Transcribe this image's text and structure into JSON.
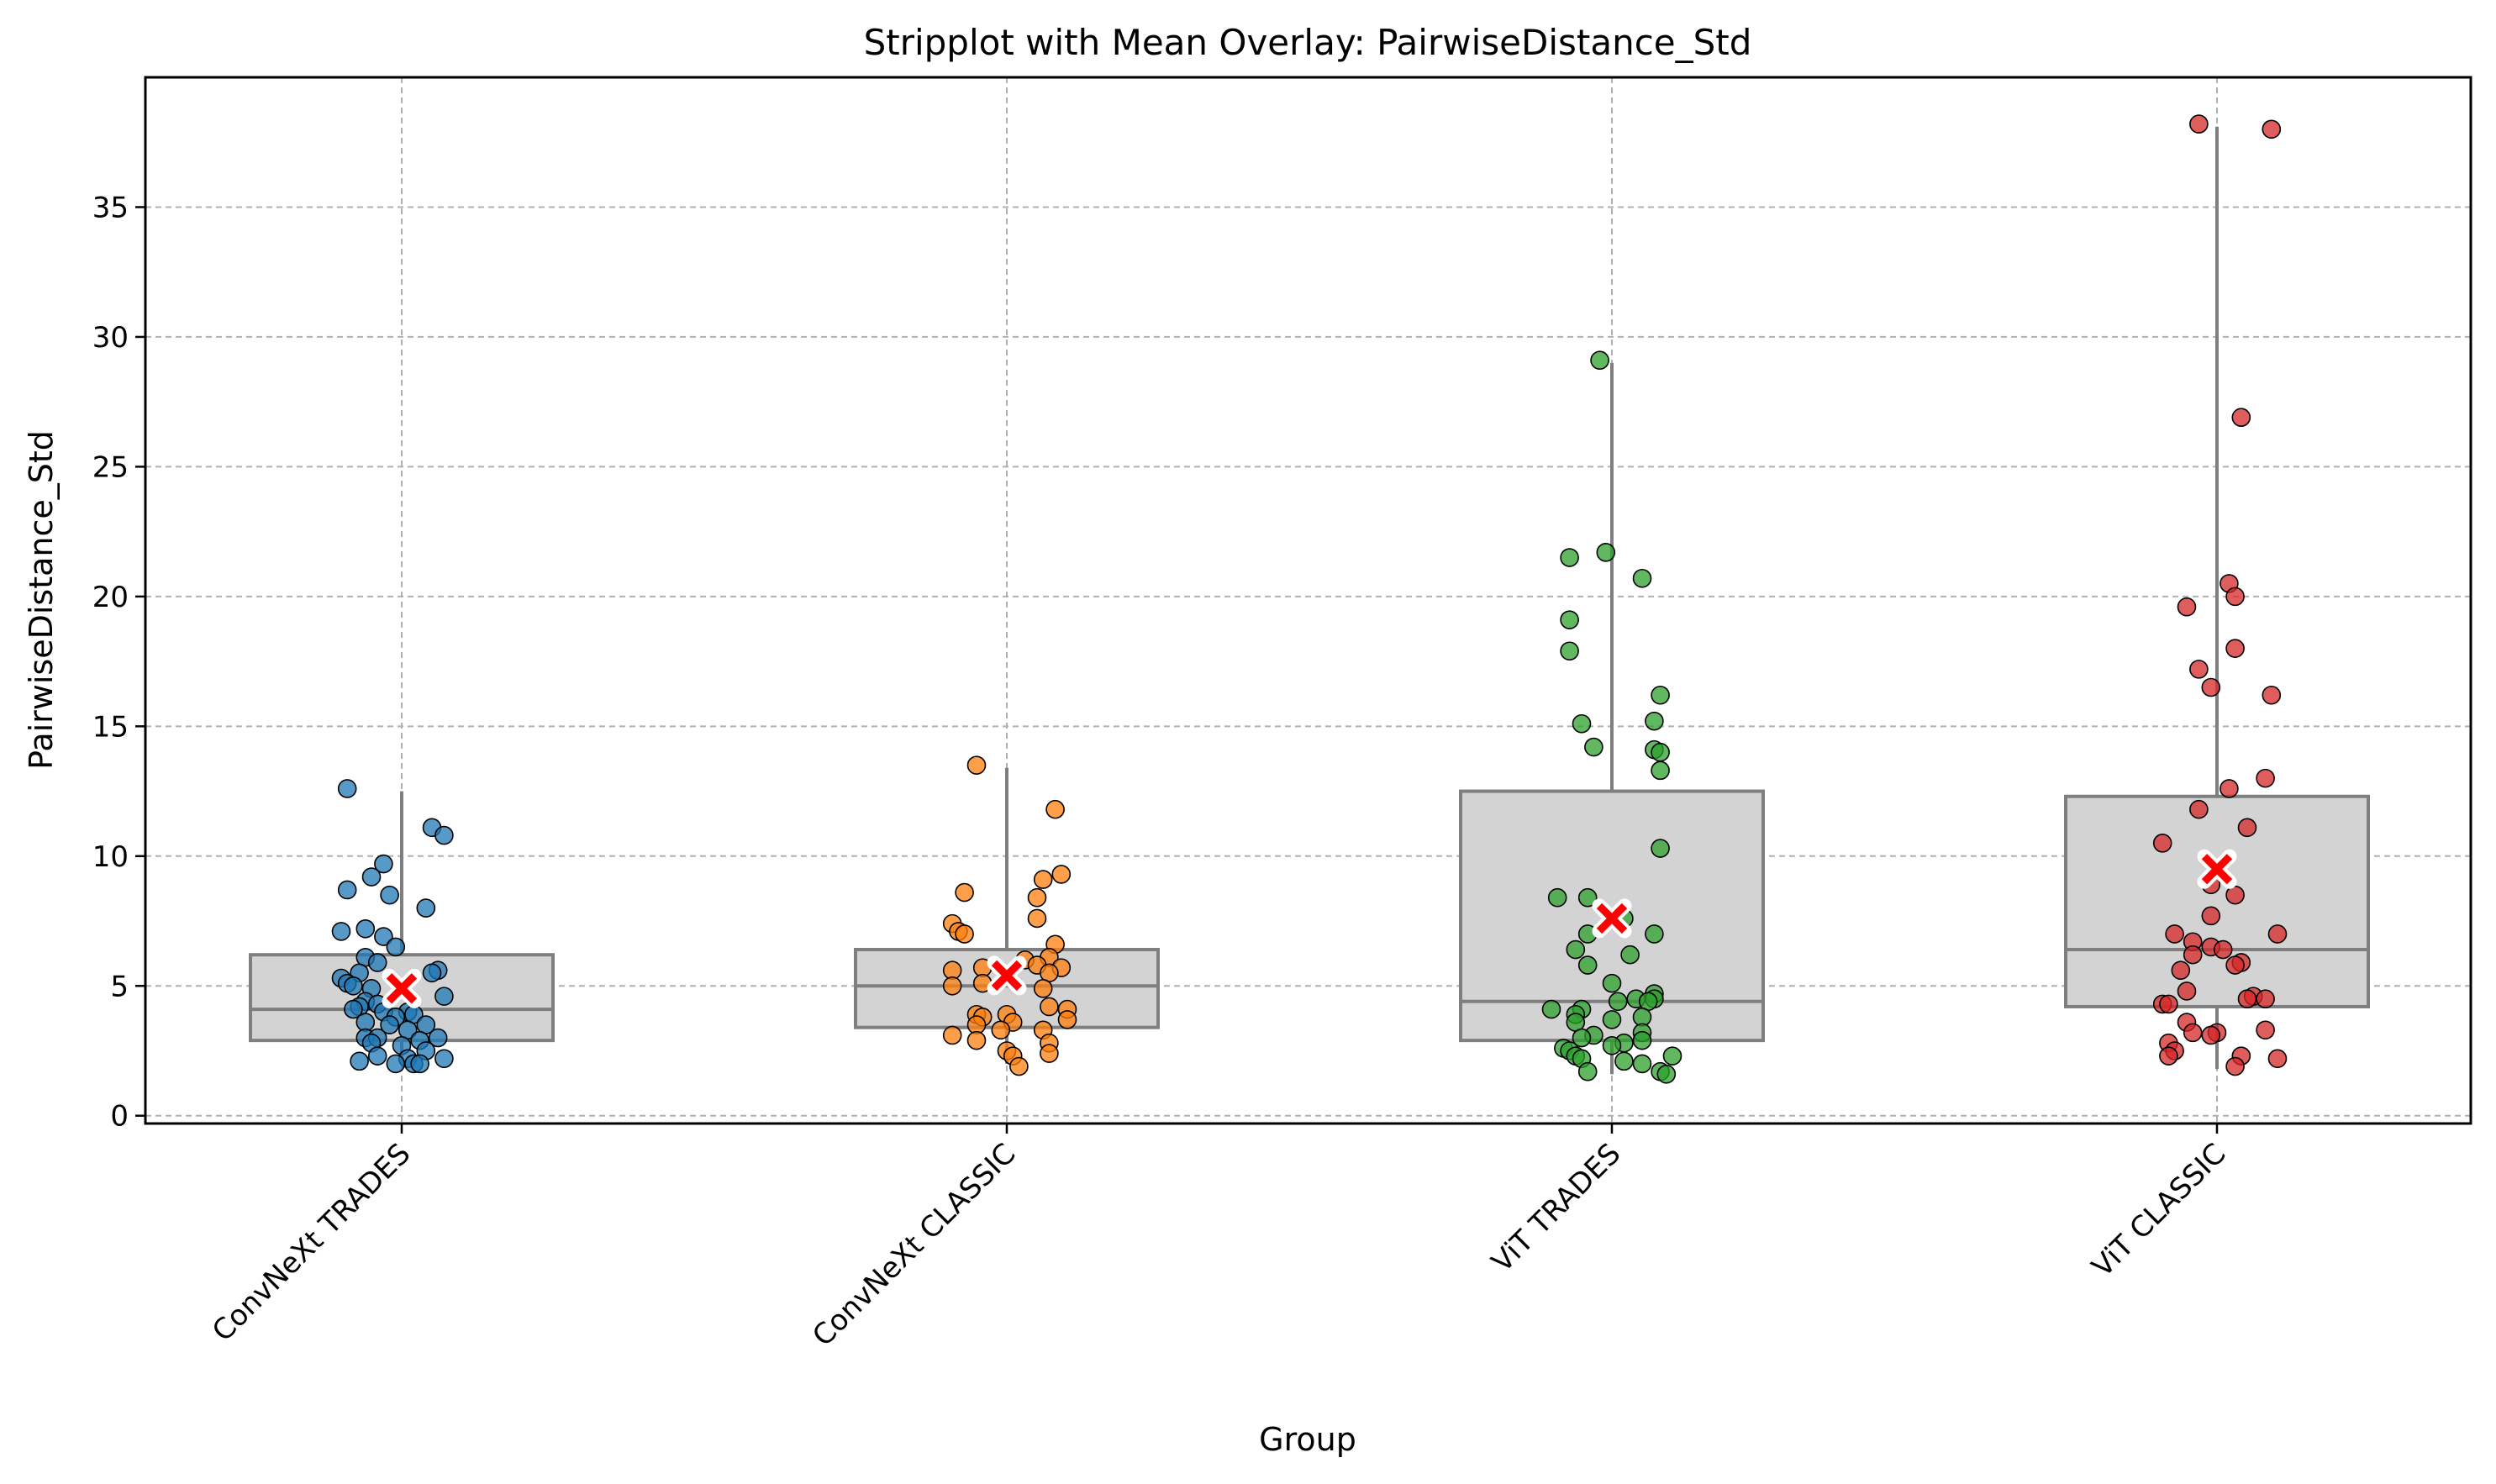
{
  "chart_data": {
    "type": "box-strip",
    "title": "Stripplot with Mean Overlay: PairwiseDistance_Std",
    "xlabel": "Group",
    "ylabel": "PairwiseDistance_Std",
    "ylim": [
      -0.3,
      40
    ],
    "yticks": [
      0,
      5,
      10,
      15,
      20,
      25,
      30,
      35
    ],
    "grid": true,
    "mean_marker": {
      "shape": "x",
      "color": "#ff0000"
    },
    "categories": [
      "ConvNeXt TRADES",
      "ConvNeXt CLASSIC",
      "ViT TRADES",
      "ViT CLASSIC"
    ],
    "series": [
      {
        "color": "#1f77b4",
        "box": {
          "q1": 2.9,
          "median": 4.1,
          "q3": 6.2,
          "whisker_low": 2.0,
          "whisker_high": 12.5
        },
        "mean": 4.9,
        "points": [
          {
            "o": -0.09,
            "v": 12.6
          },
          {
            "o": 0.05,
            "v": 11.1
          },
          {
            "o": 0.07,
            "v": 10.8
          },
          {
            "o": -0.03,
            "v": 9.7
          },
          {
            "o": -0.05,
            "v": 9.2
          },
          {
            "o": -0.09,
            "v": 8.7
          },
          {
            "o": -0.02,
            "v": 8.5
          },
          {
            "o": 0.04,
            "v": 8.0
          },
          {
            "o": -0.06,
            "v": 7.2
          },
          {
            "o": -0.1,
            "v": 7.1
          },
          {
            "o": -0.03,
            "v": 6.9
          },
          {
            "o": -0.01,
            "v": 6.5
          },
          {
            "o": -0.06,
            "v": 6.1
          },
          {
            "o": -0.04,
            "v": 5.9
          },
          {
            "o": 0.06,
            "v": 5.6
          },
          {
            "o": 0.05,
            "v": 5.5
          },
          {
            "o": -0.07,
            "v": 5.5
          },
          {
            "o": -0.1,
            "v": 5.3
          },
          {
            "o": -0.09,
            "v": 5.1
          },
          {
            "o": -0.08,
            "v": 5.0
          },
          {
            "o": -0.05,
            "v": 4.9
          },
          {
            "o": 0.07,
            "v": 4.6
          },
          {
            "o": -0.06,
            "v": 4.4
          },
          {
            "o": -0.04,
            "v": 4.3
          },
          {
            "o": -0.07,
            "v": 4.2
          },
          {
            "o": -0.08,
            "v": 4.1
          },
          {
            "o": -0.03,
            "v": 4.0
          },
          {
            "o": 0.01,
            "v": 4.0
          },
          {
            "o": 0.02,
            "v": 3.9
          },
          {
            "o": -0.01,
            "v": 3.8
          },
          {
            "o": -0.06,
            "v": 3.6
          },
          {
            "o": -0.02,
            "v": 3.5
          },
          {
            "o": 0.04,
            "v": 3.5
          },
          {
            "o": 0.01,
            "v": 3.3
          },
          {
            "o": 0.06,
            "v": 3.0
          },
          {
            "o": -0.06,
            "v": 3.0
          },
          {
            "o": -0.04,
            "v": 3.0
          },
          {
            "o": 0.03,
            "v": 2.9
          },
          {
            "o": -0.05,
            "v": 2.8
          },
          {
            "o": 0.0,
            "v": 2.7
          },
          {
            "o": 0.04,
            "v": 2.5
          },
          {
            "o": -0.04,
            "v": 2.3
          },
          {
            "o": 0.01,
            "v": 2.2
          },
          {
            "o": 0.07,
            "v": 2.2
          },
          {
            "o": -0.07,
            "v": 2.1
          },
          {
            "o": 0.02,
            "v": 2.0
          },
          {
            "o": -0.01,
            "v": 2.0
          },
          {
            "o": 0.03,
            "v": 2.0
          }
        ]
      },
      {
        "color": "#ff7f0e",
        "box": {
          "q1": 3.4,
          "median": 5.0,
          "q3": 6.4,
          "whisker_low": 2.0,
          "whisker_high": 13.4
        },
        "mean": 5.4,
        "points": [
          {
            "o": -0.05,
            "v": 13.5
          },
          {
            "o": 0.08,
            "v": 11.8
          },
          {
            "o": 0.09,
            "v": 9.3
          },
          {
            "o": 0.06,
            "v": 9.1
          },
          {
            "o": -0.07,
            "v": 8.6
          },
          {
            "o": 0.05,
            "v": 8.4
          },
          {
            "o": 0.05,
            "v": 7.6
          },
          {
            "o": -0.09,
            "v": 7.4
          },
          {
            "o": -0.08,
            "v": 7.1
          },
          {
            "o": -0.07,
            "v": 7.0
          },
          {
            "o": 0.08,
            "v": 6.6
          },
          {
            "o": 0.03,
            "v": 6.0
          },
          {
            "o": 0.07,
            "v": 6.1
          },
          {
            "o": -0.04,
            "v": 5.7
          },
          {
            "o": 0.09,
            "v": 5.7
          },
          {
            "o": 0.05,
            "v": 5.8
          },
          {
            "o": -0.09,
            "v": 5.6
          },
          {
            "o": 0.07,
            "v": 5.5
          },
          {
            "o": -0.04,
            "v": 5.1
          },
          {
            "o": -0.09,
            "v": 5.0
          },
          {
            "o": 0.06,
            "v": 4.9
          },
          {
            "o": 0.07,
            "v": 4.2
          },
          {
            "o": 0.1,
            "v": 4.1
          },
          {
            "o": -0.05,
            "v": 3.9
          },
          {
            "o": -0.04,
            "v": 3.8
          },
          {
            "o": 0.0,
            "v": 3.9
          },
          {
            "o": 0.01,
            "v": 3.6
          },
          {
            "o": 0.1,
            "v": 3.7
          },
          {
            "o": -0.05,
            "v": 3.5
          },
          {
            "o": -0.01,
            "v": 3.3
          },
          {
            "o": 0.06,
            "v": 3.3
          },
          {
            "o": -0.09,
            "v": 3.1
          },
          {
            "o": -0.05,
            "v": 2.9
          },
          {
            "o": 0.07,
            "v": 2.8
          },
          {
            "o": 0.0,
            "v": 2.5
          },
          {
            "o": 0.07,
            "v": 2.4
          },
          {
            "o": 0.01,
            "v": 2.3
          },
          {
            "o": 0.02,
            "v": 1.9
          }
        ]
      },
      {
        "color": "#2ca02c",
        "box": {
          "q1": 2.9,
          "median": 4.4,
          "q3": 12.5,
          "whisker_low": 1.6,
          "whisker_high": 29.0
        },
        "mean": 7.6,
        "points": [
          {
            "o": -0.02,
            "v": 29.1
          },
          {
            "o": -0.01,
            "v": 21.7
          },
          {
            "o": -0.07,
            "v": 21.5
          },
          {
            "o": 0.05,
            "v": 20.7
          },
          {
            "o": -0.07,
            "v": 19.1
          },
          {
            "o": -0.07,
            "v": 17.9
          },
          {
            "o": 0.08,
            "v": 16.2
          },
          {
            "o": 0.07,
            "v": 15.2
          },
          {
            "o": -0.05,
            "v": 15.1
          },
          {
            "o": -0.03,
            "v": 14.2
          },
          {
            "o": 0.07,
            "v": 14.1
          },
          {
            "o": 0.08,
            "v": 14.0
          },
          {
            "o": 0.08,
            "v": 13.3
          },
          {
            "o": 0.08,
            "v": 10.3
          },
          {
            "o": -0.09,
            "v": 8.4
          },
          {
            "o": -0.04,
            "v": 8.4
          },
          {
            "o": 0.02,
            "v": 7.6
          },
          {
            "o": -0.04,
            "v": 7.0
          },
          {
            "o": 0.07,
            "v": 7.0
          },
          {
            "o": -0.06,
            "v": 6.4
          },
          {
            "o": 0.03,
            "v": 6.2
          },
          {
            "o": -0.04,
            "v": 5.8
          },
          {
            "o": 0.0,
            "v": 5.1
          },
          {
            "o": 0.07,
            "v": 4.7
          },
          {
            "o": 0.07,
            "v": 4.5
          },
          {
            "o": 0.04,
            "v": 4.5
          },
          {
            "o": 0.06,
            "v": 4.4
          },
          {
            "o": 0.01,
            "v": 4.4
          },
          {
            "o": -0.1,
            "v": 4.1
          },
          {
            "o": -0.05,
            "v": 4.1
          },
          {
            "o": -0.06,
            "v": 3.9
          },
          {
            "o": 0.05,
            "v": 3.8
          },
          {
            "o": 0.0,
            "v": 3.7
          },
          {
            "o": -0.06,
            "v": 3.6
          },
          {
            "o": 0.05,
            "v": 3.2
          },
          {
            "o": -0.03,
            "v": 3.1
          },
          {
            "o": -0.05,
            "v": 3.0
          },
          {
            "o": 0.05,
            "v": 2.9
          },
          {
            "o": 0.02,
            "v": 2.8
          },
          {
            "o": -0.08,
            "v": 2.6
          },
          {
            "o": 0.0,
            "v": 2.7
          },
          {
            "o": -0.07,
            "v": 2.5
          },
          {
            "o": -0.06,
            "v": 2.3
          },
          {
            "o": -0.05,
            "v": 2.2
          },
          {
            "o": 0.02,
            "v": 2.1
          },
          {
            "o": 0.1,
            "v": 2.3
          },
          {
            "o": 0.05,
            "v": 2.0
          },
          {
            "o": -0.04,
            "v": 1.7
          },
          {
            "o": 0.08,
            "v": 1.7
          },
          {
            "o": 0.09,
            "v": 1.6
          }
        ]
      },
      {
        "color": "#d62728",
        "box": {
          "q1": 4.2,
          "median": 6.4,
          "q3": 12.3,
          "whisker_low": 1.8,
          "whisker_high": 38.1
        },
        "mean": 9.5,
        "points": [
          {
            "o": -0.03,
            "v": 38.2
          },
          {
            "o": 0.09,
            "v": 38.0
          },
          {
            "o": 0.04,
            "v": 26.9
          },
          {
            "o": 0.02,
            "v": 20.5
          },
          {
            "o": 0.03,
            "v": 20.0
          },
          {
            "o": -0.05,
            "v": 19.6
          },
          {
            "o": 0.03,
            "v": 18.0
          },
          {
            "o": -0.03,
            "v": 17.2
          },
          {
            "o": -0.01,
            "v": 16.5
          },
          {
            "o": 0.09,
            "v": 16.2
          },
          {
            "o": 0.08,
            "v": 13.0
          },
          {
            "o": 0.02,
            "v": 12.6
          },
          {
            "o": -0.03,
            "v": 11.8
          },
          {
            "o": 0.05,
            "v": 11.1
          },
          {
            "o": -0.09,
            "v": 10.5
          },
          {
            "o": -0.01,
            "v": 8.9
          },
          {
            "o": 0.03,
            "v": 8.5
          },
          {
            "o": -0.01,
            "v": 7.7
          },
          {
            "o": -0.07,
            "v": 7.0
          },
          {
            "o": 0.1,
            "v": 7.0
          },
          {
            "o": -0.04,
            "v": 6.7
          },
          {
            "o": -0.01,
            "v": 6.5
          },
          {
            "o": 0.01,
            "v": 6.4
          },
          {
            "o": -0.04,
            "v": 6.2
          },
          {
            "o": 0.04,
            "v": 5.9
          },
          {
            "o": 0.03,
            "v": 5.8
          },
          {
            "o": -0.06,
            "v": 5.6
          },
          {
            "o": -0.05,
            "v": 4.8
          },
          {
            "o": 0.06,
            "v": 4.6
          },
          {
            "o": 0.08,
            "v": 4.5
          },
          {
            "o": 0.05,
            "v": 4.5
          },
          {
            "o": -0.09,
            "v": 4.3
          },
          {
            "o": -0.08,
            "v": 4.3
          },
          {
            "o": -0.05,
            "v": 3.6
          },
          {
            "o": 0.08,
            "v": 3.3
          },
          {
            "o": -0.04,
            "v": 3.2
          },
          {
            "o": 0.0,
            "v": 3.2
          },
          {
            "o": -0.01,
            "v": 3.1
          },
          {
            "o": -0.08,
            "v": 2.8
          },
          {
            "o": -0.07,
            "v": 2.5
          },
          {
            "o": -0.08,
            "v": 2.3
          },
          {
            "o": 0.04,
            "v": 2.3
          },
          {
            "o": 0.1,
            "v": 2.2
          },
          {
            "o": 0.03,
            "v": 1.9
          }
        ]
      }
    ]
  }
}
